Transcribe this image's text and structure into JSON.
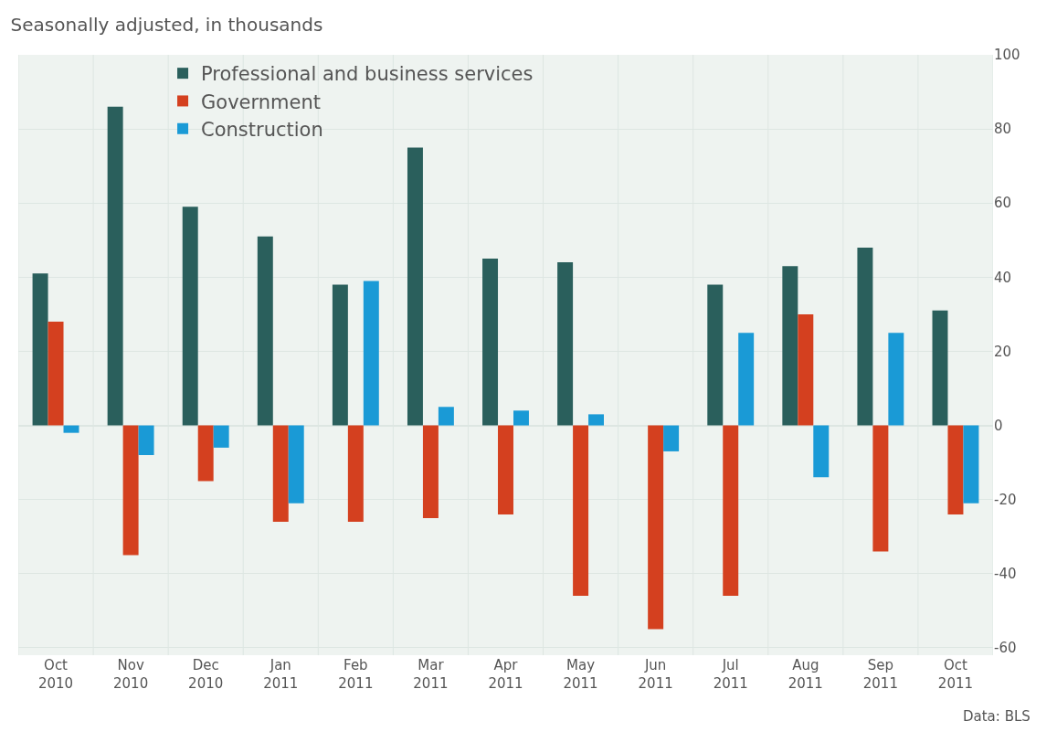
{
  "chart_data": {
    "type": "bar",
    "title": "Seasonally adjusted, in thousands",
    "categories": [
      "Oct\n2010",
      "Nov\n2010",
      "Dec\n2010",
      "Jan\n2011",
      "Feb\n2011",
      "Mar\n2011",
      "Apr\n2011",
      "May\n2011",
      "Jun\n2011",
      "Jul\n2011",
      "Aug\n2011",
      "Sep\n2011",
      "Oct\n2011"
    ],
    "series": [
      {
        "name": "Professional and business services",
        "color": "#2a5f5c",
        "values": [
          41,
          86,
          59,
          51,
          38,
          75,
          45,
          44,
          0,
          38,
          43,
          48,
          31
        ]
      },
      {
        "name": "Government",
        "color": "#d4401f",
        "values": [
          28,
          -35,
          -15,
          -26,
          -26,
          -25,
          -24,
          -46,
          -55,
          -46,
          30,
          -34,
          -24
        ]
      },
      {
        "name": "Construction",
        "color": "#1a9ad6",
        "values": [
          -2,
          -8,
          -6,
          -21,
          39,
          5,
          4,
          3,
          -7,
          25,
          -14,
          25,
          -21
        ]
      }
    ],
    "ylim": [
      -62,
      100
    ],
    "yticks": [
      -60,
      -40,
      -20,
      0,
      20,
      40,
      60,
      80,
      100
    ],
    "grid": true,
    "legend": "top left",
    "annotations": [
      "Data: BLS"
    ]
  }
}
